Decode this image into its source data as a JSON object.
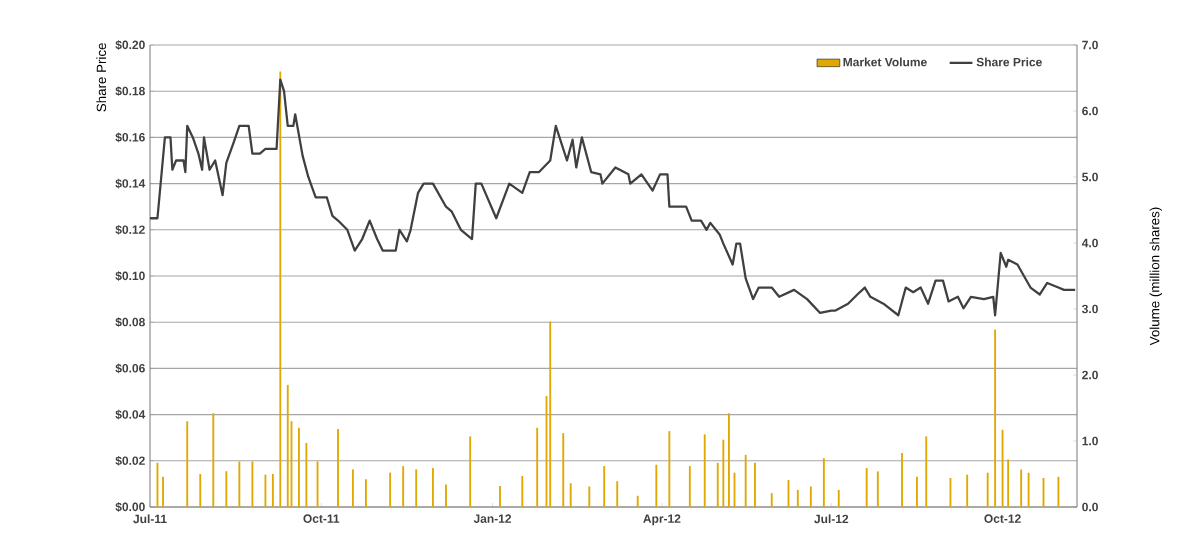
{
  "chart_data": {
    "type": "line",
    "ylabel": "Share Price",
    "y2label": "Volume (million shares)",
    "xlim": [
      "2011-07-01",
      "2012-11-10"
    ],
    "xticks": [
      {
        "value": "2011-07-01",
        "label": "Jul-11"
      },
      {
        "value": "2011-10-01",
        "label": "Oct-11"
      },
      {
        "value": "2012-01-01",
        "label": "Jan-12"
      },
      {
        "value": "2012-04-01",
        "label": "Apr-12"
      },
      {
        "value": "2012-07-01",
        "label": "Jul-12"
      },
      {
        "value": "2012-10-01",
        "label": "Oct-12"
      }
    ],
    "ylim": [
      0,
      0.2
    ],
    "yticks": [
      {
        "value": 0,
        "label": "$0.00"
      },
      {
        "value": 0.02,
        "label": "$0.02"
      },
      {
        "value": 0.04,
        "label": "$0.04"
      },
      {
        "value": 0.06,
        "label": "$0.06"
      },
      {
        "value": 0.08,
        "label": "$0.08"
      },
      {
        "value": 0.1,
        "label": "$0.10"
      },
      {
        "value": 0.12,
        "label": "$0.12"
      },
      {
        "value": 0.14,
        "label": "$0.14"
      },
      {
        "value": 0.16,
        "label": "$0.16"
      },
      {
        "value": 0.18,
        "label": "$0.18"
      },
      {
        "value": 0.2,
        "label": "$0.20"
      }
    ],
    "y2lim": [
      0,
      7
    ],
    "y2ticks": [
      {
        "value": 0,
        "label": "0.0"
      },
      {
        "value": 1,
        "label": "1.0"
      },
      {
        "value": 2,
        "label": "2.0"
      },
      {
        "value": 3,
        "label": "3.0"
      },
      {
        "value": 4,
        "label": "4.0"
      },
      {
        "value": 5,
        "label": "5.0"
      },
      {
        "value": 6,
        "label": "6.0"
      },
      {
        "value": 7,
        "label": "7.0"
      }
    ],
    "grid": "y",
    "legend": "top right",
    "line_style": "solid",
    "series": [
      {
        "name": "Market Volume",
        "type": "bar",
        "axis": "y2",
        "color": "#e0a800",
        "x": [
          "2011-07-05",
          "2011-07-08",
          "2011-07-21",
          "2011-07-28",
          "2011-08-04",
          "2011-08-11",
          "2011-08-18",
          "2011-08-25",
          "2011-09-01",
          "2011-09-05",
          "2011-09-09",
          "2011-09-13",
          "2011-09-15",
          "2011-09-19",
          "2011-09-23",
          "2011-09-29",
          "2011-10-10",
          "2011-10-18",
          "2011-10-25",
          "2011-11-07",
          "2011-11-14",
          "2011-11-21",
          "2011-11-30",
          "2011-12-07",
          "2011-12-20",
          "2012-01-05",
          "2012-01-17",
          "2012-01-25",
          "2012-01-30",
          "2012-02-01",
          "2012-02-08",
          "2012-02-12",
          "2012-02-22",
          "2012-03-01",
          "2012-03-08",
          "2012-03-19",
          "2012-03-29",
          "2012-04-05",
          "2012-04-16",
          "2012-04-24",
          "2012-05-01",
          "2012-05-04",
          "2012-05-07",
          "2012-05-10",
          "2012-05-16",
          "2012-05-21",
          "2012-05-30",
          "2012-06-08",
          "2012-06-13",
          "2012-06-20",
          "2012-06-27",
          "2012-07-05",
          "2012-07-20",
          "2012-07-26",
          "2012-08-08",
          "2012-08-16",
          "2012-08-21",
          "2012-09-03",
          "2012-09-12",
          "2012-09-23",
          "2012-09-27",
          "2012-10-01",
          "2012-10-04",
          "2012-10-11",
          "2012-10-15",
          "2012-10-23",
          "2012-10-31"
        ],
        "values": [
          0.67,
          0.46,
          1.3,
          0.5,
          1.42,
          0.54,
          0.69,
          0.69,
          0.49,
          0.5,
          6.6,
          1.85,
          1.3,
          1.2,
          0.97,
          0.69,
          1.18,
          0.57,
          0.42,
          0.52,
          0.62,
          0.57,
          0.59,
          0.34,
          1.07,
          0.32,
          0.47,
          1.2,
          1.68,
          2.81,
          1.12,
          0.36,
          0.31,
          0.62,
          0.39,
          0.17,
          0.64,
          1.15,
          0.62,
          1.1,
          0.67,
          1.02,
          1.42,
          0.52,
          0.79,
          0.67,
          0.21,
          0.41,
          0.26,
          0.31,
          0.74,
          0.26,
          0.59,
          0.54,
          0.82,
          0.46,
          1.07,
          0.44,
          0.49,
          0.52,
          2.69,
          1.17,
          0.72,
          0.57,
          0.52,
          0.44,
          0.46
        ]
      },
      {
        "name": "Share Price",
        "color": "#404040",
        "x": [
          "2011-07-01",
          "2011-07-05",
          "2011-07-09",
          "2011-07-12",
          "2011-07-13",
          "2011-07-15",
          "2011-07-19",
          "2011-07-20",
          "2011-07-21",
          "2011-07-24",
          "2011-07-27",
          "2011-07-29",
          "2011-07-30",
          "2011-08-02",
          "2011-08-05",
          "2011-08-09",
          "2011-08-11",
          "2011-08-15",
          "2011-08-18",
          "2011-08-23",
          "2011-08-25",
          "2011-08-29",
          "2011-09-01",
          "2011-09-07",
          "2011-09-09",
          "2011-09-11",
          "2011-09-13",
          "2011-09-16",
          "2011-09-17",
          "2011-09-21",
          "2011-09-24",
          "2011-09-28",
          "2011-10-04",
          "2011-10-07",
          "2011-10-10",
          "2011-10-15",
          "2011-10-19",
          "2011-10-23",
          "2011-10-27",
          "2011-10-31",
          "2011-11-03",
          "2011-11-10",
          "2011-11-12",
          "2011-11-16",
          "2011-11-18",
          "2011-11-22",
          "2011-11-25",
          "2011-11-30",
          "2011-12-07",
          "2011-12-10",
          "2011-12-15",
          "2011-12-21",
          "2011-12-23",
          "2011-12-26",
          "2012-01-03",
          "2012-01-10",
          "2012-01-17",
          "2012-01-21",
          "2012-01-26",
          "2012-02-01",
          "2012-02-04",
          "2012-02-10",
          "2012-02-13",
          "2012-02-15",
          "2012-02-18",
          "2012-02-23",
          "2012-02-28",
          "2012-02-29",
          "2012-03-07",
          "2012-03-14",
          "2012-03-15",
          "2012-03-21",
          "2012-03-27",
          "2012-03-31",
          "2012-04-04",
          "2012-04-05",
          "2012-04-14",
          "2012-04-17",
          "2012-04-22",
          "2012-04-25",
          "2012-04-27",
          "2012-05-02",
          "2012-05-04",
          "2012-05-09",
          "2012-05-11",
          "2012-05-13",
          "2012-05-16",
          "2012-05-20",
          "2012-05-23",
          "2012-05-30",
          "2012-06-03",
          "2012-06-11",
          "2012-06-18",
          "2012-06-25",
          "2012-07-01",
          "2012-07-03",
          "2012-07-10",
          "2012-07-15",
          "2012-07-19",
          "2012-07-22",
          "2012-07-29",
          "2012-08-06",
          "2012-08-10",
          "2012-08-14",
          "2012-08-18",
          "2012-08-22",
          "2012-08-26",
          "2012-08-30",
          "2012-09-02",
          "2012-09-07",
          "2012-09-10",
          "2012-09-14",
          "2012-09-21",
          "2012-09-26",
          "2012-09-27",
          "2012-09-30",
          "2012-10-03",
          "2012-10-04",
          "2012-10-09",
          "2012-10-16",
          "2012-10-21",
          "2012-10-25",
          "2012-10-31",
          "2012-11-03",
          "2012-11-09"
        ],
        "values": [
          0.125,
          0.125,
          0.16,
          0.16,
          0.146,
          0.15,
          0.15,
          0.145,
          0.165,
          0.16,
          0.153,
          0.146,
          0.16,
          0.146,
          0.15,
          0.135,
          0.149,
          0.158,
          0.165,
          0.165,
          0.153,
          0.153,
          0.155,
          0.155,
          0.185,
          0.18,
          0.165,
          0.165,
          0.17,
          0.152,
          0.143,
          0.134,
          0.134,
          0.126,
          0.124,
          0.12,
          0.111,
          0.116,
          0.124,
          0.116,
          0.111,
          0.111,
          0.12,
          0.115,
          0.12,
          0.136,
          0.14,
          0.14,
          0.13,
          0.128,
          0.12,
          0.116,
          0.14,
          0.14,
          0.125,
          0.14,
          0.136,
          0.145,
          0.145,
          0.15,
          0.165,
          0.15,
          0.159,
          0.147,
          0.16,
          0.145,
          0.144,
          0.14,
          0.147,
          0.144,
          0.14,
          0.144,
          0.137,
          0.144,
          0.144,
          0.13,
          0.13,
          0.124,
          0.124,
          0.12,
          0.123,
          0.118,
          0.114,
          0.105,
          0.114,
          0.114,
          0.099,
          0.09,
          0.095,
          0.095,
          0.091,
          0.094,
          0.09,
          0.084,
          0.085,
          0.085,
          0.088,
          0.092,
          0.095,
          0.091,
          0.088,
          0.083,
          0.095,
          0.093,
          0.095,
          0.088,
          0.098,
          0.098,
          0.089,
          0.091,
          0.086,
          0.091,
          0.09,
          0.091,
          0.083,
          0.11,
          0.104,
          0.107,
          0.105,
          0.095,
          0.092,
          0.097,
          0.095,
          0.094,
          0.094
        ]
      }
    ]
  }
}
